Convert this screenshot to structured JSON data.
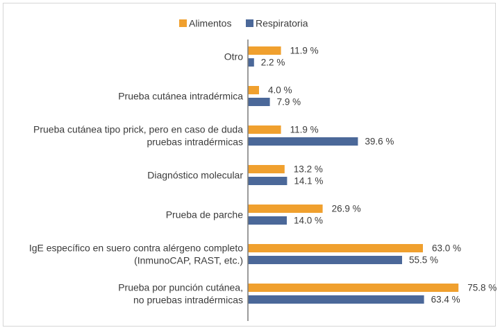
{
  "chart_data": {
    "type": "bar",
    "orientation": "horizontal",
    "title": "",
    "xlabel": "",
    "ylabel": "",
    "xlim": [
      0,
      90
    ],
    "grid": false,
    "legend_position": "top-center",
    "categories": [
      [
        "Otro"
      ],
      [
        "Prueba cutánea intradérmica"
      ],
      [
        "Prueba cutánea tipo prick, pero en caso de duda",
        "pruebas intradérmicas"
      ],
      [
        "Diagnóstico molecular"
      ],
      [
        "Prueba de parche"
      ],
      [
        "IgE específico en suero contra alérgeno completo",
        "(InmunoCAP, RAST, etc.)"
      ],
      [
        "Prueba por punción cutánea,",
        "no pruebas intradérmicas"
      ]
    ],
    "series": [
      {
        "name": "Alimentos",
        "color": "#f0a02e",
        "values": [
          11.9,
          4.0,
          11.9,
          13.2,
          26.9,
          63.0,
          75.8
        ],
        "labels": [
          "11.9 %",
          "4.0 %",
          "11.9 %",
          "13.2 %",
          "26.9 %",
          "63.0 %",
          "75.8 %"
        ]
      },
      {
        "name": "Respiratoria",
        "color": "#4b6899",
        "values": [
          2.2,
          7.9,
          39.6,
          14.1,
          14.0,
          55.5,
          63.4
        ],
        "labels": [
          "2.2 %",
          "7.9 %",
          "39.6 %",
          "14.1 %",
          "14.0 %",
          "55.5 %",
          "63.4 %"
        ]
      }
    ]
  }
}
